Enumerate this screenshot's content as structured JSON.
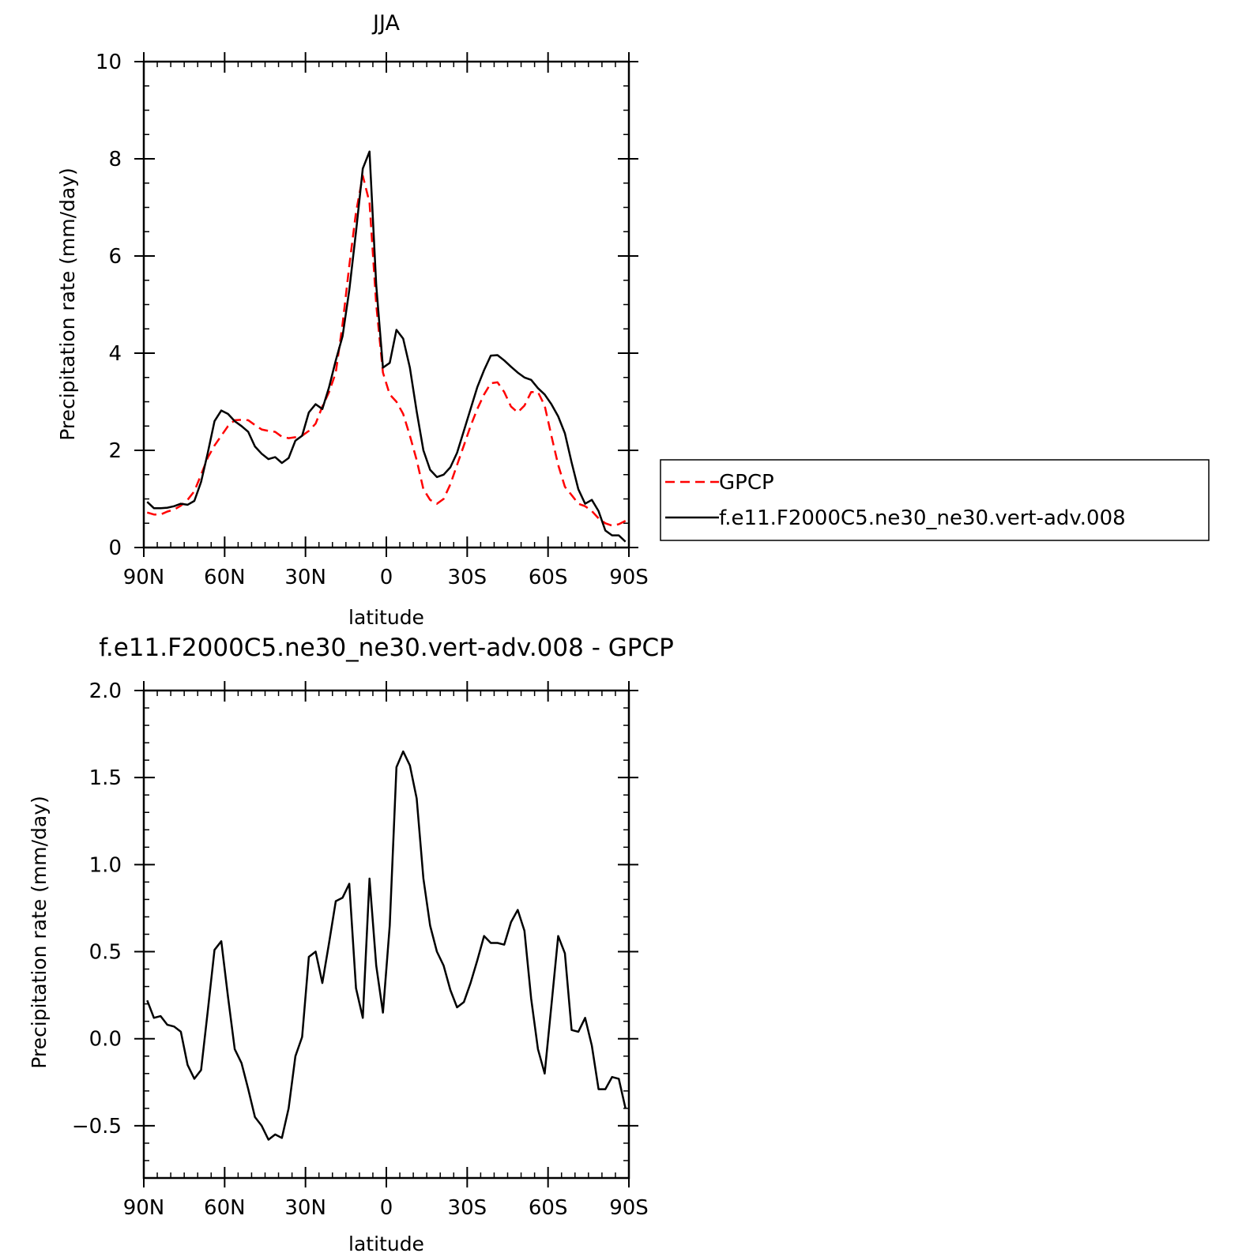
{
  "chart_data": [
    {
      "type": "line",
      "title": "JJA",
      "xlabel": "latitude",
      "ylabel": "Precipitation rate (mm/day)",
      "xlim": [
        90,
        -90
      ],
      "ylim": [
        0,
        10
      ],
      "x_ticks": [
        90,
        60,
        30,
        0,
        -30,
        -60,
        -90
      ],
      "x_tick_labels": [
        "90N",
        "60N",
        "30N",
        "0",
        "30S",
        "60S",
        "90S"
      ],
      "y_ticks": [
        0,
        2,
        4,
        6,
        8,
        10
      ],
      "y_tick_labels": [
        "0",
        "2",
        "4",
        "6",
        "8",
        "10"
      ],
      "grid": false,
      "legend_position": "right",
      "series": [
        {
          "name": "GPCP",
          "color": "#ff0000",
          "dash": "dashed",
          "x": [
            88.75,
            86.25,
            83.75,
            81.25,
            78.75,
            76.25,
            73.75,
            71.25,
            68.75,
            66.25,
            63.75,
            61.25,
            58.75,
            56.25,
            53.75,
            51.25,
            48.75,
            46.25,
            43.75,
            41.25,
            38.75,
            36.25,
            33.75,
            31.25,
            28.75,
            26.25,
            23.75,
            21.25,
            18.75,
            16.25,
            13.75,
            11.25,
            8.75,
            6.25,
            3.75,
            1.25,
            -1.25,
            -3.75,
            -6.25,
            -8.75,
            -11.25,
            -13.75,
            -16.25,
            -18.75,
            -21.25,
            -23.75,
            -26.25,
            -28.75,
            -31.25,
            -33.75,
            -36.25,
            -38.75,
            -41.25,
            -43.75,
            -46.25,
            -48.75,
            -51.25,
            -53.75,
            -56.25,
            -58.75,
            -61.25,
            -63.75,
            -66.25,
            -68.75,
            -71.25,
            -73.75,
            -76.25,
            -78.75,
            -81.25,
            -83.75,
            -86.25,
            -88.75
          ],
          "y": [
            0.72,
            0.68,
            0.68,
            0.74,
            0.78,
            0.86,
            0.98,
            1.16,
            1.5,
            1.85,
            2.1,
            2.3,
            2.5,
            2.62,
            2.63,
            2.62,
            2.52,
            2.43,
            2.4,
            2.38,
            2.28,
            2.25,
            2.27,
            2.3,
            2.4,
            2.55,
            2.9,
            3.2,
            3.6,
            4.6,
            5.8,
            6.9,
            7.65,
            7.1,
            5.0,
            3.6,
            3.15,
            3.0,
            2.75,
            2.3,
            1.8,
            1.2,
            0.98,
            0.9,
            1.0,
            1.3,
            1.7,
            2.1,
            2.5,
            2.85,
            3.15,
            3.38,
            3.4,
            3.2,
            2.9,
            2.78,
            2.92,
            3.2,
            3.2,
            2.92,
            2.3,
            1.7,
            1.25,
            1.08,
            0.9,
            0.85,
            0.75,
            0.6,
            0.5,
            0.45,
            0.48,
            0.55
          ]
        },
        {
          "name": "f.e11.F2000C5.ne30_ne30.vert-adv.008",
          "color": "#000000",
          "dash": "solid",
          "x": [
            88.75,
            86.25,
            83.75,
            81.25,
            78.75,
            76.25,
            73.75,
            71.25,
            68.75,
            66.25,
            63.75,
            61.25,
            58.75,
            56.25,
            53.75,
            51.25,
            48.75,
            46.25,
            43.75,
            41.25,
            38.75,
            36.25,
            33.75,
            31.25,
            28.75,
            26.25,
            23.75,
            21.25,
            18.75,
            16.25,
            13.75,
            11.25,
            8.75,
            6.25,
            3.75,
            1.25,
            -1.25,
            -3.75,
            -6.25,
            -8.75,
            -11.25,
            -13.75,
            -16.25,
            -18.75,
            -21.25,
            -23.75,
            -26.25,
            -28.75,
            -31.25,
            -33.75,
            -36.25,
            -38.75,
            -41.25,
            -43.75,
            -46.25,
            -48.75,
            -51.25,
            -53.75,
            -56.25,
            -58.75,
            -61.25,
            -63.75,
            -66.25,
            -68.75,
            -71.25,
            -73.75,
            -76.25,
            -78.75,
            -81.25,
            -83.75,
            -86.25,
            -88.75
          ],
          "y": [
            0.94,
            0.81,
            0.81,
            0.82,
            0.85,
            0.9,
            0.88,
            0.96,
            1.35,
            1.95,
            2.6,
            2.82,
            2.75,
            2.6,
            2.5,
            2.38,
            2.08,
            1.93,
            1.82,
            1.86,
            1.74,
            1.84,
            2.2,
            2.3,
            2.78,
            2.95,
            2.85,
            3.3,
            3.85,
            4.35,
            5.3,
            6.5,
            7.8,
            8.15,
            5.4,
            3.7,
            3.8,
            4.48,
            4.3,
            3.7,
            2.8,
            2.0,
            1.6,
            1.45,
            1.5,
            1.65,
            1.95,
            2.4,
            2.85,
            3.3,
            3.65,
            3.95,
            3.96,
            3.85,
            3.72,
            3.6,
            3.5,
            3.45,
            3.28,
            3.15,
            2.95,
            2.7,
            2.35,
            1.75,
            1.2,
            0.9,
            0.98,
            0.75,
            0.35,
            0.25,
            0.25,
            0.12
          ]
        }
      ]
    },
    {
      "type": "line",
      "title": "f.e11.F2000C5.ne30_ne30.vert-adv.008 - GPCP",
      "xlabel": "latitude",
      "ylabel": "Precipitation rate (mm/day)",
      "xlim": [
        90,
        -90
      ],
      "ylim": [
        -0.8,
        2.0
      ],
      "x_ticks": [
        90,
        60,
        30,
        0,
        -30,
        -60,
        -90
      ],
      "x_tick_labels": [
        "90N",
        "60N",
        "30N",
        "0",
        "30S",
        "60S",
        "90S"
      ],
      "y_ticks": [
        -0.5,
        0.0,
        0.5,
        1.0,
        1.5,
        2.0
      ],
      "y_tick_labels": [
        "−0.5",
        "0.0",
        "0.5",
        "1.0",
        "1.5",
        "2.0"
      ],
      "grid": false,
      "series": [
        {
          "color": "#000000",
          "dash": "solid",
          "x": [
            88.75,
            86.25,
            83.75,
            81.25,
            78.75,
            76.25,
            73.75,
            71.25,
            68.75,
            66.25,
            63.75,
            61.25,
            58.75,
            56.25,
            53.75,
            51.25,
            48.75,
            46.25,
            43.75,
            41.25,
            38.75,
            36.25,
            33.75,
            31.25,
            28.75,
            26.25,
            23.75,
            21.25,
            18.75,
            16.25,
            13.75,
            11.25,
            8.75,
            6.25,
            3.75,
            1.25,
            -1.25,
            -3.75,
            -6.25,
            -8.75,
            -11.25,
            -13.75,
            -16.25,
            -18.75,
            -21.25,
            -23.75,
            -26.25,
            -28.75,
            -31.25,
            -33.75,
            -36.25,
            -38.75,
            -41.25,
            -43.75,
            -46.25,
            -48.75,
            -51.25,
            -53.75,
            -56.25,
            -58.75,
            -61.25,
            -63.75,
            -66.25,
            -68.75,
            -71.25,
            -73.75,
            -76.25,
            -78.75,
            -81.25,
            -83.75,
            -86.25,
            -88.75
          ],
          "y": [
            0.22,
            0.12,
            0.13,
            0.08,
            0.07,
            0.04,
            -0.15,
            -0.23,
            -0.18,
            0.16,
            0.51,
            0.56,
            0.24,
            -0.06,
            -0.14,
            -0.29,
            -0.45,
            -0.5,
            -0.58,
            -0.55,
            -0.57,
            -0.4,
            -0.1,
            0.01,
            0.47,
            0.5,
            0.32,
            0.55,
            0.79,
            0.81,
            0.89,
            0.29,
            0.12,
            0.92,
            0.42,
            0.15,
            0.65,
            1.56,
            1.65,
            1.57,
            1.38,
            0.92,
            0.65,
            0.5,
            0.42,
            0.28,
            0.18,
            0.21,
            0.32,
            0.45,
            0.59,
            0.55,
            0.55,
            0.54,
            0.67,
            0.74,
            0.62,
            0.23,
            -0.06,
            -0.2,
            0.19,
            0.59,
            0.49,
            0.05,
            0.04,
            0.12,
            -0.04,
            -0.29,
            -0.29,
            -0.22,
            -0.23,
            -0.4
          ]
        }
      ]
    }
  ]
}
